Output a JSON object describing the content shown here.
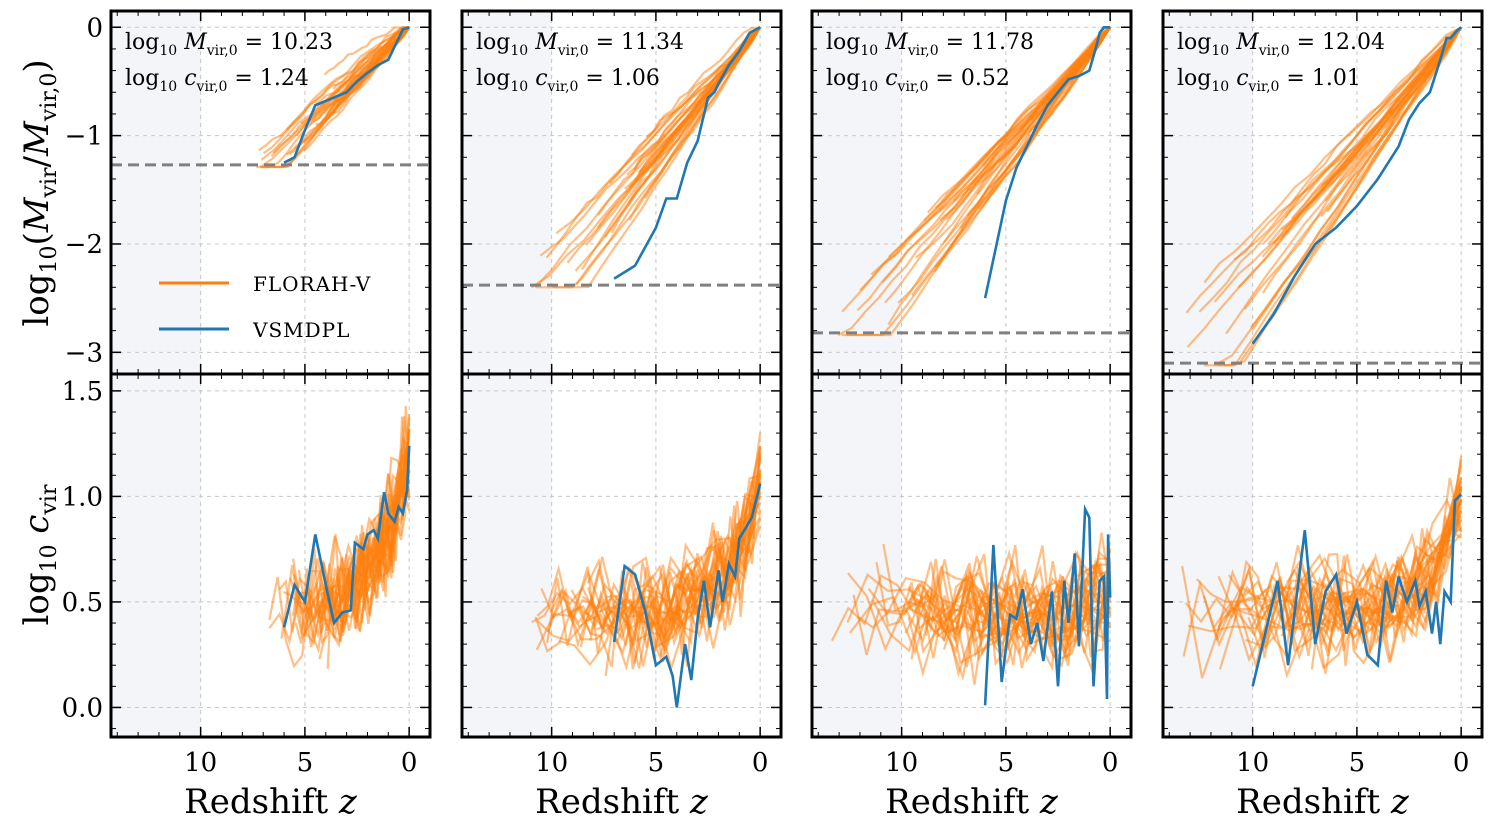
{
  "chart_data": {
    "type": "line",
    "layout": "2 rows x 4 columns (top: mass history, bottom: concentration history)",
    "colors": {
      "florah": "#ff7f0e",
      "vsmdpl": "#1f77b4",
      "threshold": "#808080",
      "shade": "#f3f5f9",
      "grid": "#c8c8c8"
    },
    "xaxis": {
      "label_text": "Redshift",
      "label_var": "z",
      "ticks": [
        10,
        5,
        0
      ],
      "tick_labels": [
        "10",
        "5",
        "0"
      ],
      "xlim": [
        14.3,
        -1.0
      ],
      "inverted": true
    },
    "top_yaxis": {
      "label_text": "log10(Mvir/Mvir,0)",
      "ticks": [
        0,
        -1,
        -2,
        -3
      ],
      "tick_labels": [
        "0",
        "−1",
        "−2",
        "−3"
      ],
      "ylim": [
        -3.2,
        0.15
      ]
    },
    "bottom_yaxis": {
      "label_text": "log10 cvir",
      "ticks": [
        1.5,
        1.0,
        0.5,
        0.0
      ],
      "tick_labels": [
        "1.5",
        "1.0",
        "0.5",
        "0.0"
      ],
      "ylim": [
        -0.14,
        1.58
      ]
    },
    "legend": {
      "location": "lower-left of first top panel",
      "entries": [
        {
          "label": "FLORAH-V",
          "color": "#ff7f0e"
        },
        {
          "label": "VSMDPL",
          "color": "#1f77b4"
        }
      ]
    },
    "panels": [
      {
        "logM0_label": "log10 Mvir,0 = 10.23",
        "logM0_value": "10.23",
        "logc0_label": "log10 cvir,0 = 1.24",
        "logc0_value": "1.24",
        "shade_zmin": 10,
        "threshold": -1.27,
        "florah_zmax": 7.4,
        "florah_count": 30,
        "vsmdpl_mass": {
          "z": [
            6.0,
            5.5,
            5.0,
            4.5,
            4.0,
            3.5,
            3.0,
            2.5,
            2.0,
            1.5,
            1.0,
            0.5,
            0.3,
            0.0
          ],
          "y": [
            -1.25,
            -1.2,
            -0.95,
            -0.72,
            -0.68,
            -0.64,
            -0.6,
            -0.5,
            -0.42,
            -0.35,
            -0.3,
            -0.1,
            -0.02,
            0.0
          ]
        },
        "vsmdpl_conc": {
          "z": [
            6.0,
            5.5,
            5.0,
            4.5,
            4.0,
            3.6,
            3.2,
            2.8,
            2.6,
            2.2,
            2.0,
            1.7,
            1.5,
            1.2,
            1.0,
            0.7,
            0.5,
            0.3,
            0.1,
            0.0
          ],
          "y": [
            0.38,
            0.58,
            0.5,
            0.82,
            0.58,
            0.4,
            0.45,
            0.46,
            0.78,
            0.75,
            0.82,
            0.84,
            0.8,
            1.02,
            0.92,
            0.88,
            0.95,
            0.92,
            1.03,
            1.24
          ]
        }
      },
      {
        "logM0_label": "log10 Mvir,0 = 11.34",
        "logM0_value": "11.34",
        "logc0_label": "log10 cvir,0 = 1.06",
        "logc0_value": "1.06",
        "shade_zmin": 10,
        "threshold": -2.38,
        "florah_zmax": 11.0,
        "florah_count": 30,
        "vsmdpl_mass": {
          "z": [
            7.0,
            6.0,
            5.0,
            4.5,
            4.0,
            3.5,
            3.0,
            2.5,
            2.2,
            2.0,
            1.5,
            1.0,
            0.5,
            0.0
          ],
          "y": [
            -2.32,
            -2.2,
            -1.85,
            -1.58,
            -1.58,
            -1.25,
            -1.05,
            -0.65,
            -0.6,
            -0.52,
            -0.35,
            -0.22,
            -0.05,
            0.0
          ]
        },
        "vsmdpl_conc": {
          "z": [
            7.0,
            6.5,
            6.0,
            5.5,
            5.0,
            4.5,
            4.2,
            4.0,
            3.6,
            3.3,
            3.0,
            2.7,
            2.4,
            2.0,
            1.8,
            1.5,
            1.2,
            1.0,
            0.7,
            0.4,
            0.0
          ],
          "y": [
            0.31,
            0.67,
            0.63,
            0.45,
            0.2,
            0.24,
            0.15,
            0.0,
            0.3,
            0.13,
            0.42,
            0.6,
            0.38,
            0.65,
            0.5,
            0.68,
            0.62,
            0.8,
            0.85,
            0.9,
            1.06
          ]
        }
      },
      {
        "logM0_label": "log10 Mvir,0 = 11.78",
        "logM0_value": "11.78",
        "logc0_label": "log10 cvir,0 = 0.52",
        "logc0_value": "0.52",
        "shade_zmin": 10,
        "threshold": -2.82,
        "florah_zmax": 13.5,
        "florah_count": 30,
        "vsmdpl_mass": {
          "z": [
            6.0,
            5.5,
            5.0,
            4.5,
            4.0,
            3.5,
            3.0,
            2.5,
            2.0,
            1.5,
            1.0,
            0.7,
            0.5,
            0.3,
            0.0
          ],
          "y": [
            -2.5,
            -2.05,
            -1.6,
            -1.3,
            -1.1,
            -0.9,
            -0.72,
            -0.6,
            -0.48,
            -0.45,
            -0.4,
            -0.2,
            -0.05,
            0.0,
            0.0
          ]
        },
        "vsmdpl_conc": {
          "z": [
            6.0,
            5.6,
            5.2,
            4.8,
            4.5,
            4.2,
            3.8,
            3.5,
            3.2,
            2.8,
            2.5,
            2.2,
            2.0,
            1.7,
            1.5,
            1.2,
            1.0,
            0.8,
            0.5,
            0.3,
            0.15,
            0.1,
            0.0
          ],
          "y": [
            0.01,
            0.77,
            0.12,
            0.44,
            0.42,
            0.56,
            0.3,
            0.4,
            0.22,
            0.55,
            0.1,
            0.6,
            0.4,
            0.73,
            0.29,
            0.94,
            0.9,
            0.1,
            0.6,
            0.62,
            0.04,
            0.82,
            0.52
          ]
        }
      },
      {
        "logM0_label": "log10 Mvir,0 = 12.04",
        "logM0_value": "12.04",
        "logc0_label": "log10 cvir,0 = 1.01",
        "logc0_value": "1.01",
        "shade_zmin": 10,
        "threshold": -3.1,
        "florah_zmax": 13.8,
        "florah_count": 30,
        "vsmdpl_mass": {
          "z": [
            10.0,
            9.0,
            8.0,
            7.0,
            6.0,
            5.0,
            4.0,
            3.0,
            2.5,
            2.0,
            1.5,
            1.0,
            0.7,
            0.5,
            0.2,
            0.0
          ],
          "y": [
            -2.92,
            -2.65,
            -2.3,
            -2.0,
            -1.85,
            -1.65,
            -1.4,
            -1.1,
            -0.85,
            -0.7,
            -0.6,
            -0.3,
            -0.1,
            -0.1,
            -0.03,
            0.0
          ]
        },
        "vsmdpl_conc": {
          "z": [
            10.0,
            8.8,
            8.3,
            7.5,
            7.0,
            6.5,
            6.0,
            5.5,
            5.0,
            4.5,
            4.0,
            3.6,
            3.3,
            3.0,
            2.6,
            2.2,
            2.0,
            1.7,
            1.4,
            1.2,
            1.0,
            0.8,
            0.5,
            0.3,
            0.0
          ],
          "y": [
            0.1,
            0.6,
            0.2,
            0.84,
            0.3,
            0.55,
            0.63,
            0.35,
            0.5,
            0.25,
            0.2,
            0.6,
            0.45,
            0.62,
            0.5,
            0.6,
            0.48,
            0.55,
            0.35,
            0.5,
            0.3,
            0.55,
            0.5,
            0.98,
            1.01
          ]
        }
      }
    ]
  }
}
